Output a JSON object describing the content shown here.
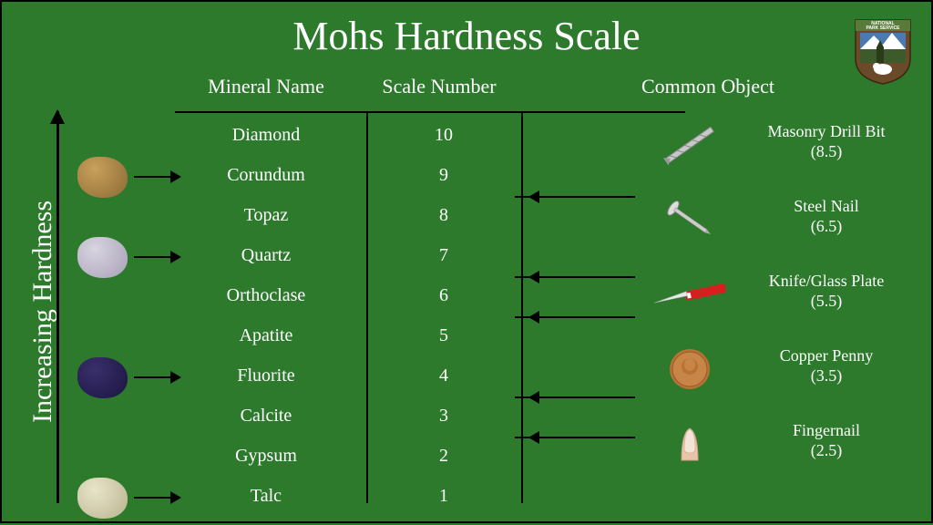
{
  "title": "Mohs Hardness Scale",
  "axis_label": "Increasing Hardness",
  "background_color": "#2d7a2d",
  "text_color": "#ffffff",
  "line_color": "#000000",
  "title_fontsize": 44,
  "header_fontsize": 22,
  "row_fontsize": 20,
  "axis_fontsize": 30,
  "headers": {
    "mineral": "Mineral Name",
    "scale": "Scale Number",
    "object": "Common Object"
  },
  "minerals": [
    {
      "name": "Diamond",
      "scale": "10"
    },
    {
      "name": "Corundum",
      "scale": "9"
    },
    {
      "name": "Topaz",
      "scale": "8"
    },
    {
      "name": "Quartz",
      "scale": "7"
    },
    {
      "name": "Orthoclase",
      "scale": "6"
    },
    {
      "name": "Apatite",
      "scale": "5"
    },
    {
      "name": "Fluorite",
      "scale": "4"
    },
    {
      "name": "Calcite",
      "scale": "3"
    },
    {
      "name": "Gypsum",
      "scale": "2"
    },
    {
      "name": "Talc",
      "scale": "1"
    }
  ],
  "samples": [
    {
      "row_index": 1,
      "color1": "#c9a05b",
      "color2": "#8a6a35"
    },
    {
      "row_index": 3,
      "color1": "#d8d4e0",
      "color2": "#a8a0b8"
    },
    {
      "row_index": 6,
      "color1": "#3a2f6b",
      "color2": "#1a1540"
    },
    {
      "row_index": 9,
      "color1": "#e8e4c8",
      "color2": "#b8b490"
    }
  ],
  "objects": [
    {
      "name": "Masonry Drill Bit",
      "value": "(8.5)",
      "scale_pos": 8.5,
      "icon": "drill"
    },
    {
      "name": "Steel Nail",
      "value": "(6.5)",
      "scale_pos": 6.5,
      "icon": "nail"
    },
    {
      "name": "Knife/Glass Plate",
      "value": "(5.5)",
      "scale_pos": 5.5,
      "icon": "knife"
    },
    {
      "name": "Copper Penny",
      "value": "(3.5)",
      "scale_pos": 3.5,
      "icon": "penny"
    },
    {
      "name": "Fingernail",
      "value": "(2.5)",
      "scale_pos": 2.5,
      "icon": "nail-finger"
    }
  ],
  "logo_text": "NATIONAL PARK SERVICE",
  "logo_colors": {
    "shield": "#6b4a2a",
    "banner": "#5a7a3a",
    "sky": "#4a7ab0"
  }
}
